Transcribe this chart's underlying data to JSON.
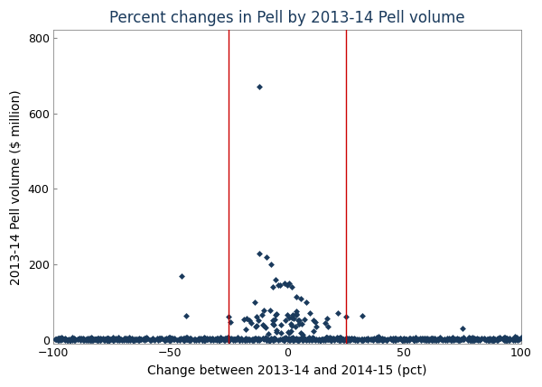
{
  "title": "Percent changes in Pell by 2013-14 Pell volume",
  "xlabel": "Change between 2013-14 and 2014-15 (pct)",
  "ylabel": "2013-14 Pell volume ($ million)",
  "xlim": [
    -100,
    100
  ],
  "ylim": [
    -10,
    820
  ],
  "yticks": [
    0,
    200,
    400,
    600,
    800
  ],
  "xticks": [
    -100,
    -50,
    0,
    50,
    100
  ],
  "vline1": -25,
  "vline2": 25,
  "vline_color": "#cc0000",
  "marker_color": "#1a3a5c",
  "marker": "D",
  "marker_size": 3.5,
  "background_color": "#ffffff",
  "title_color": "#1a3a5c",
  "title_fontsize": 12,
  "axis_fontsize": 10,
  "seed": 42,
  "figsize": [
    6.0,
    4.29
  ],
  "dpi": 100
}
